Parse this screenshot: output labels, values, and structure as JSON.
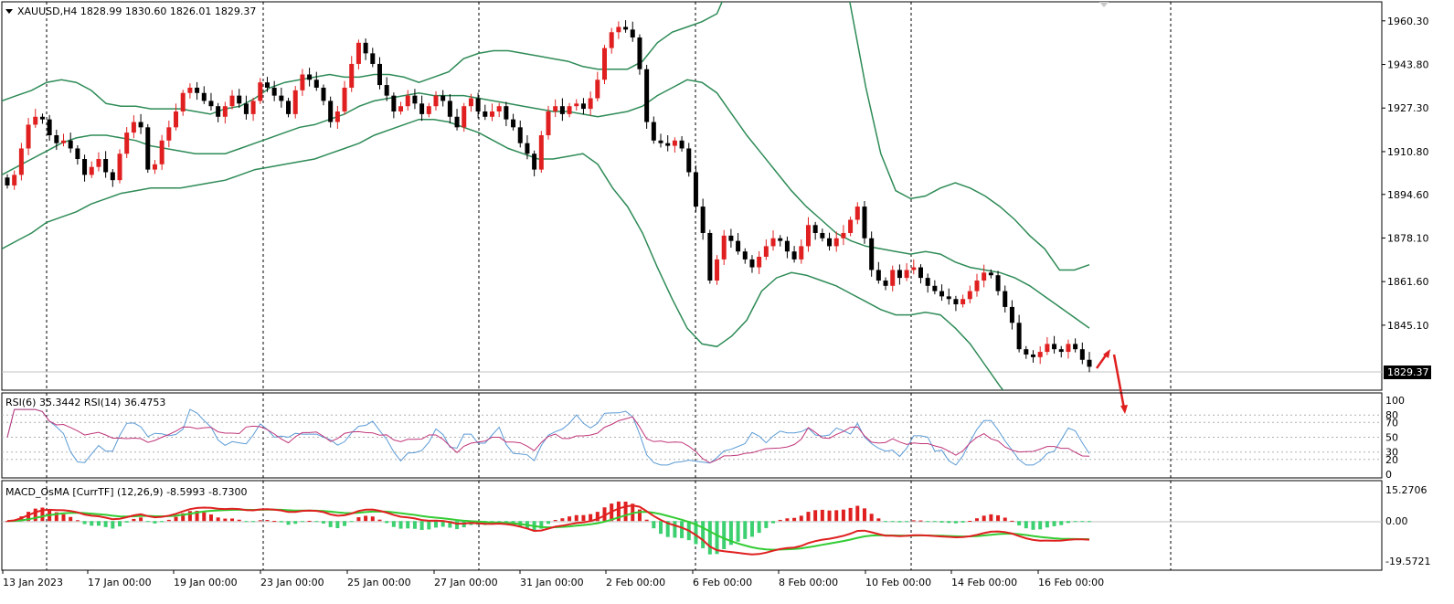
{
  "colors": {
    "background": "#ffffff",
    "grid": "#000000",
    "text": "#000000",
    "bull_candle": "#e02020",
    "bear_candle": "#000000",
    "bollinger": "#2e8b57",
    "rsi6": "#5b9bd5",
    "rsi14": "#c0367a",
    "macd_hist_pos": "#e02020",
    "macd_hist_neg": "#3cd070",
    "macd_line": "#e02020",
    "signal_line": "#33cc33",
    "arrow": "#e02020"
  },
  "chart_data": [
    {
      "type": "candlestick",
      "title": "XAUUSD,H4  1828.99 1830.60 1826.01 1829.37",
      "symbol": "XAUUSD",
      "timeframe": "H4",
      "ohlc_header": "1828.99 1830.60 1826.01 1829.37",
      "current_price_label": "1829.37",
      "current_price": 1829.37,
      "y_ticks": [
        "1960.30",
        "1943.80",
        "1927.30",
        "1910.80",
        "1894.60",
        "1878.10",
        "1861.60",
        "1845.10"
      ],
      "ylim": [
        1820.5,
        1967.5
      ],
      "x_ticks": [
        "13 Jan 2023",
        "17 Jan 00:00",
        "19 Jan 00:00",
        "23 Jan 00:00",
        "25 Jan 00:00",
        "27 Jan 00:00",
        "31 Jan 00:00",
        "2 Feb 00:00",
        "6 Feb 00:00",
        "8 Feb 00:00",
        "10 Feb 00:00",
        "14 Feb 00:00",
        "16 Feb 00:00"
      ],
      "closes": [
        1898,
        1902,
        1912,
        1921,
        1924,
        1923,
        1917,
        1914,
        1915,
        1912,
        1908,
        1902,
        1905,
        1908,
        1903,
        1900,
        1910,
        1918,
        1922,
        1920,
        1904,
        1906,
        1915,
        1920,
        1926,
        1933,
        1935,
        1933,
        1930,
        1928,
        1924,
        1928,
        1932,
        1929,
        1925,
        1930,
        1937,
        1935,
        1932,
        1930,
        1925,
        1934,
        1940,
        1938,
        1935,
        1930,
        1922,
        1926,
        1935,
        1944,
        1952,
        1948,
        1944,
        1936,
        1932,
        1926,
        1928,
        1932,
        1929,
        1925,
        1928,
        1932,
        1930,
        1924,
        1920,
        1928,
        1931,
        1926,
        1924,
        1926,
        1928,
        1923,
        1920,
        1914,
        1910,
        1904,
        1917,
        1926,
        1928,
        1925,
        1928,
        1929,
        1927,
        1931,
        1938,
        1950,
        1956,
        1958,
        1957,
        1954,
        1942,
        1922,
        1915,
        1914,
        1913,
        1915,
        1912,
        1903,
        1890,
        1880,
        1862,
        1870,
        1879,
        1877,
        1873,
        1870,
        1867,
        1871,
        1875,
        1878,
        1877,
        1873,
        1870,
        1875,
        1883,
        1880,
        1878,
        1875,
        1878,
        1880,
        1885,
        1890,
        1878,
        1866,
        1862,
        1860,
        1866,
        1863,
        1866,
        1867,
        1863,
        1860,
        1858,
        1856,
        1855,
        1853,
        1855,
        1858,
        1862,
        1865,
        1864,
        1858,
        1852,
        1846,
        1836,
        1834,
        1833,
        1835,
        1838,
        1836,
        1835,
        1838,
        1836,
        1832,
        1829.37
      ],
      "bollinger_upper": [
        1930,
        1932,
        1934,
        1937,
        1938,
        1937,
        1934,
        1929,
        1928,
        1928,
        1927,
        1927,
        1927,
        1926,
        1925,
        1927,
        1928,
        1931,
        1935,
        1937,
        1938,
        1939,
        1940,
        1939,
        1939,
        1940,
        1940,
        1939,
        1937,
        1939,
        1941,
        1946,
        1948,
        1949,
        1949,
        1948,
        1947,
        1946,
        1945,
        1943,
        1942,
        1942,
        1942,
        1945,
        1952,
        1956,
        1958,
        1960,
        1963,
        1976,
        1993,
        2018,
        2038,
        2048,
        2042,
        2025,
        1995,
        1965,
        1935,
        1910,
        1896,
        1893,
        1894,
        1897,
        1899,
        1897,
        1894,
        1890,
        1885,
        1879,
        1874,
        1866,
        1866,
        1868
      ],
      "bollinger_mid": [
        1902,
        1905,
        1908,
        1911,
        1914,
        1916,
        1917,
        1917,
        1916,
        1915,
        1913,
        1912,
        1911,
        1910,
        1910,
        1910,
        1912,
        1914,
        1916,
        1918,
        1920,
        1921,
        1923,
        1925,
        1928,
        1930,
        1931,
        1932,
        1933,
        1932,
        1932,
        1932,
        1931,
        1930,
        1929,
        1928,
        1927,
        1926,
        1926,
        1925,
        1924,
        1925,
        1926,
        1928,
        1932,
        1935,
        1938,
        1937,
        1933,
        1925,
        1917,
        1910,
        1903,
        1896,
        1890,
        1885,
        1880,
        1877,
        1875,
        1874,
        1873,
        1872,
        1873,
        1872,
        1869,
        1867,
        1866,
        1865,
        1863,
        1860,
        1856,
        1852,
        1848,
        1844
      ],
      "bollinger_lower": [
        1874,
        1877,
        1880,
        1884,
        1886,
        1888,
        1891,
        1893,
        1895,
        1896,
        1897,
        1897,
        1897,
        1898,
        1899,
        1900,
        1902,
        1904,
        1905,
        1906,
        1907,
        1908,
        1910,
        1912,
        1914,
        1917,
        1919,
        1921,
        1923,
        1923,
        1922,
        1920,
        1918,
        1915,
        1912,
        1910,
        1908,
        1908,
        1909,
        1910,
        1906,
        1897,
        1890,
        1880,
        1867,
        1855,
        1844,
        1838,
        1837,
        1841,
        1847,
        1858,
        1863,
        1865,
        1864,
        1862,
        1860,
        1857,
        1854,
        1851,
        1849,
        1849,
        1850,
        1849,
        1844,
        1838,
        1830,
        1822,
        1815,
        1809,
        1804,
        1800,
        1798,
        1796
      ]
    },
    {
      "type": "line",
      "title": "RSI(6) 35.3442  RSI(14) 36.4753",
      "series": [
        {
          "name": "RSI(6)",
          "current": "35.3442"
        },
        {
          "name": "RSI(14)",
          "current": "36.4753"
        }
      ],
      "y_ticks": [
        "100",
        "80",
        "70",
        "50",
        "30",
        "20",
        "0"
      ],
      "ylim": [
        0,
        100
      ]
    },
    {
      "type": "bar",
      "title": "MACD_OsMA [CurrTF] (12,26,9) -8.5993 -8.7300",
      "series": [
        {
          "name": "MACD",
          "current": "-8.5993"
        },
        {
          "name": "Signal",
          "current": "-8.7300"
        }
      ],
      "y_ticks": [
        "15.2706",
        "0.00",
        "-19.5721"
      ],
      "ylim": [
        -19.5721,
        15.2706
      ]
    }
  ]
}
